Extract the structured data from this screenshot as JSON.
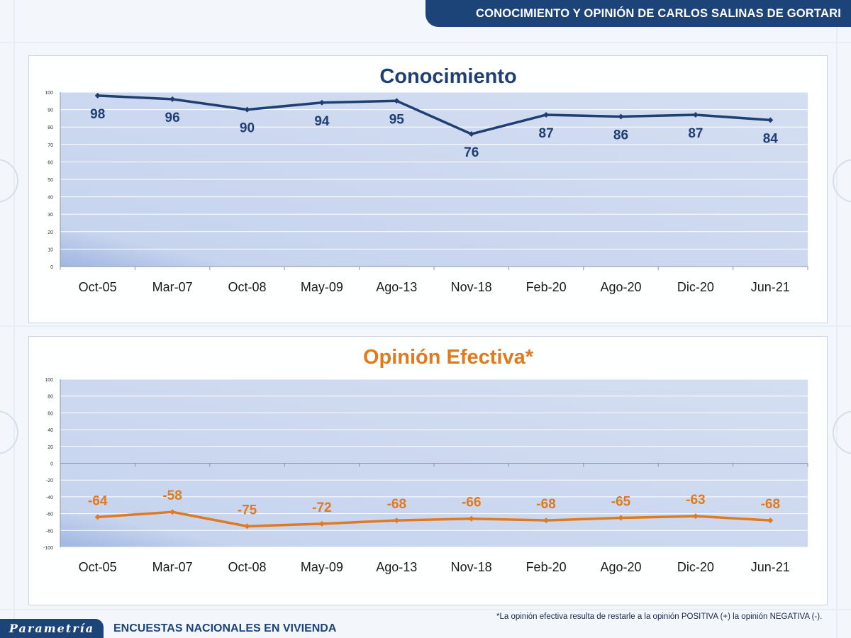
{
  "header": {
    "title": "CONOCIMIENTO Y OPINIÓN DE CARLOS SALINAS DE GORTARI"
  },
  "footer": {
    "logo": "Parametría",
    "subtitle": "ENCUESTAS NACIONALES EN VIVIENDA",
    "footnote": "*La opinión efectiva resulta de restarle a la opinión POSITIVA (+) la opinión NEGATIVA (-)."
  },
  "colors": {
    "brand": "#1d4478",
    "series_conocimiento": "#1f3f73",
    "series_opinion": "#e07a1f",
    "plot_bg": "#d4def2"
  },
  "chart_data": [
    {
      "type": "line",
      "title": "Conocimiento",
      "categories": [
        "Oct-05",
        "Mar-07",
        "Oct-08",
        "May-09",
        "Ago-13",
        "Nov-18",
        "Feb-20",
        "Ago-20",
        "Dic-20",
        "Jun-21"
      ],
      "series": [
        {
          "values": [
            98,
            96,
            90,
            94,
            95,
            76,
            87,
            86,
            87,
            84
          ]
        }
      ],
      "ylim": [
        0,
        100
      ],
      "yticks": [
        0,
        10,
        20,
        30,
        40,
        50,
        60,
        70,
        80,
        90,
        100
      ],
      "data_labels": "below",
      "grid": true,
      "legend": "none"
    },
    {
      "type": "line",
      "title": "Opinión Efectiva*",
      "categories": [
        "Oct-05",
        "Mar-07",
        "Oct-08",
        "May-09",
        "Ago-13",
        "Nov-18",
        "Feb-20",
        "Ago-20",
        "Dic-20",
        "Jun-21"
      ],
      "series": [
        {
          "values": [
            -64,
            -58,
            -75,
            -72,
            -68,
            -66,
            -68,
            -65,
            -63,
            -68
          ]
        }
      ],
      "ylim": [
        -100,
        100
      ],
      "yticks": [
        -100,
        -80,
        -60,
        -40,
        -20,
        0,
        20,
        40,
        60,
        80,
        100
      ],
      "data_labels": "above",
      "grid": true,
      "legend": "none"
    }
  ]
}
